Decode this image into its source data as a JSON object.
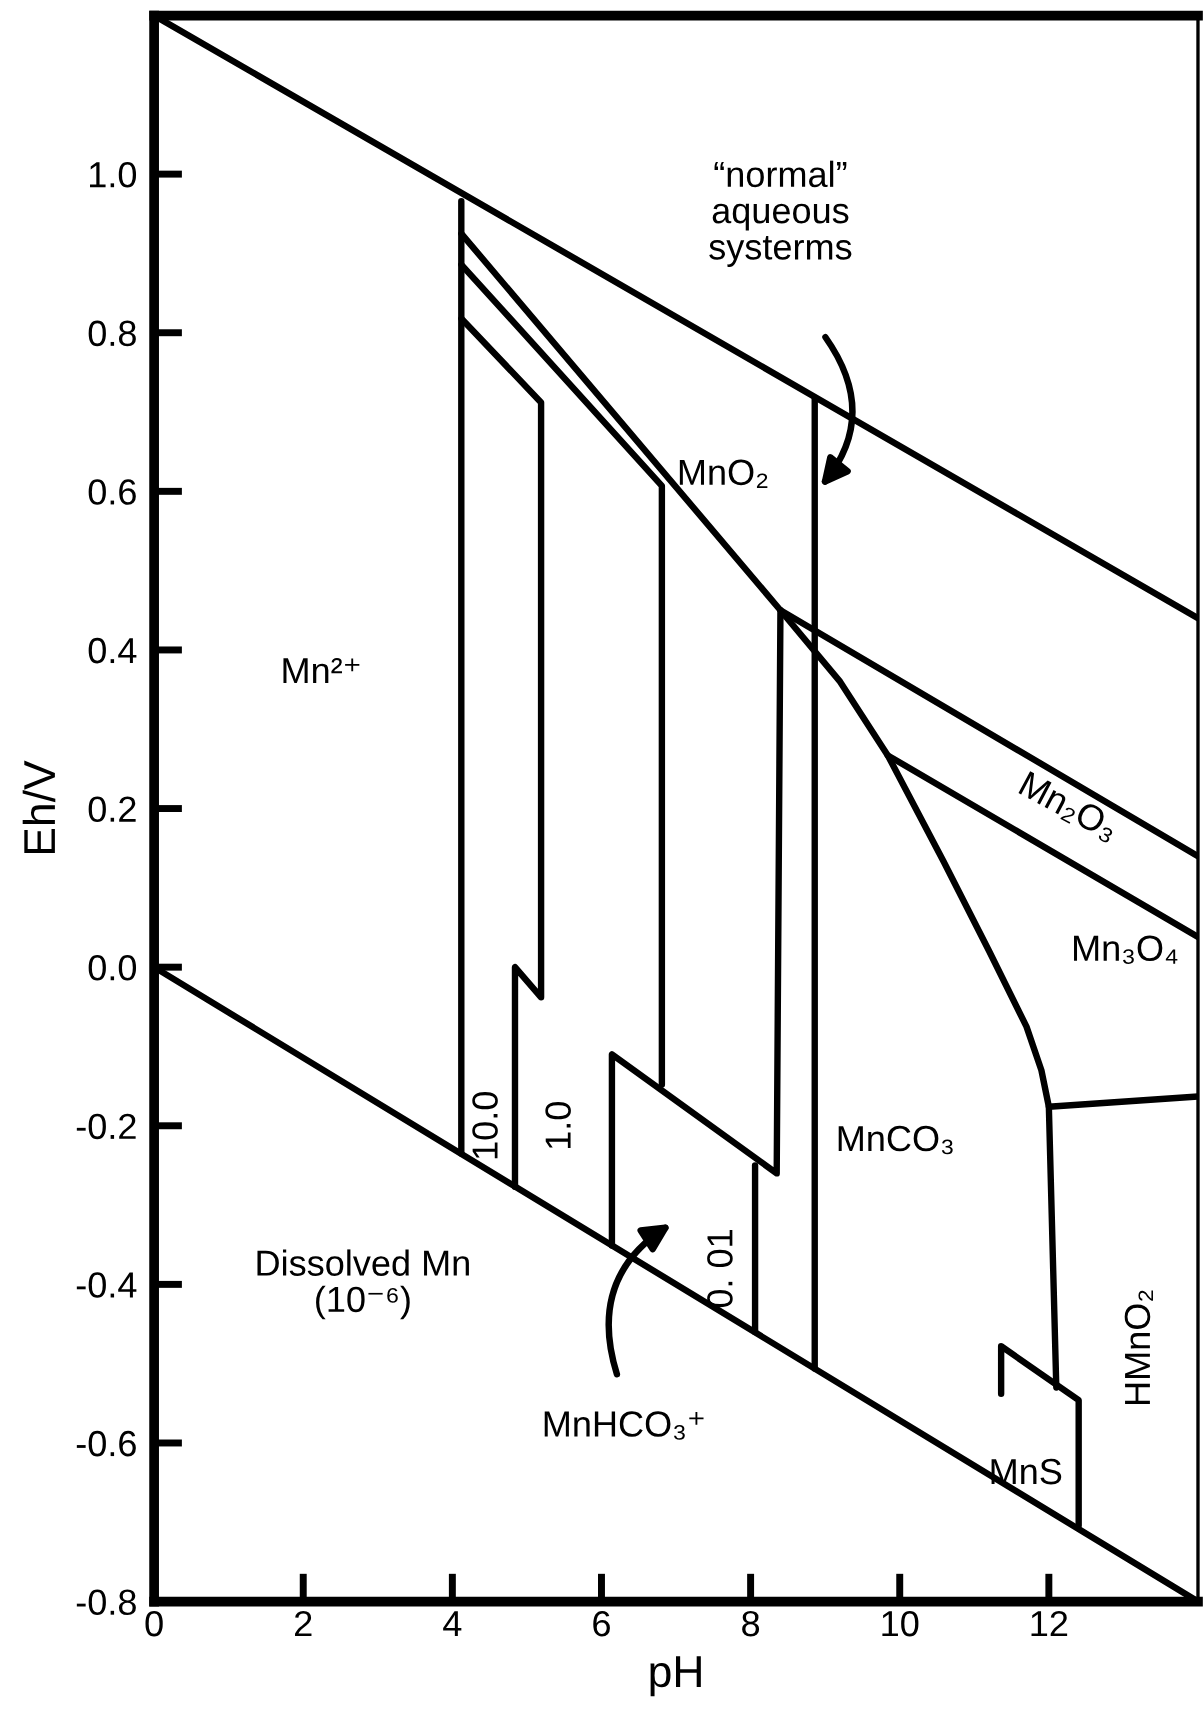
{
  "chart_data": {
    "type": "line",
    "xlabel": "pH",
    "ylabel": "Eh/V",
    "xlim": [
      0,
      14
    ],
    "ylim": [
      -0.8,
      1.2
    ],
    "xticks": [
      0,
      2,
      4,
      6,
      8,
      10,
      12
    ],
    "yticks": [
      -0.8,
      -0.6,
      -0.4,
      -0.2,
      {
        "value": 0,
        "label": "0.0"
      },
      0.2,
      0.4,
      0.6,
      0.8,
      {
        "value": 1,
        "label": "1.0"
      }
    ],
    "grid": false,
    "marker": "none",
    "line_style": "solid",
    "series": [
      {
        "color": "#000000",
        "x": [
          0,
          14
        ],
        "values": [
          1.2,
          0.44
        ]
      },
      {
        "color": "#000000",
        "x": [
          0,
          14
        ],
        "values": [
          0.0,
          -0.8
        ]
      },
      {
        "color": "#000000",
        "x": [
          4.12,
          4.12
        ],
        "values": [
          0.966,
          -0.235
        ]
      },
      {
        "color": "#000000",
        "x": [
          4.12,
          5.19,
          5.19,
          4.84,
          4.84
        ],
        "values": [
          0.818,
          0.712,
          -0.038,
          0.0,
          -0.277
        ]
      },
      {
        "color": "#000000",
        "x": [
          4.12,
          6.81,
          6.81
        ],
        "values": [
          0.886,
          0.607,
          -0.148
        ]
      },
      {
        "color": "#000000",
        "x": [
          4.12,
          8.4,
          14
        ],
        "values": [
          0.925,
          0.45,
          0.14
        ]
      },
      {
        "color": "#000000",
        "x": [
          8.4,
          8.35,
          6.14,
          6.14
        ],
        "values": [
          0.45,
          -0.26,
          -0.11,
          -0.351
        ]
      },
      {
        "color": "#000000",
        "x": [
          8.06,
          8.06
        ],
        "values": [
          -0.25,
          -0.46
        ]
      },
      {
        "color": "#000000",
        "x": [
          8.86,
          8.86
        ],
        "values": [
          0.716,
          -0.506
        ]
      },
      {
        "color": "#000000",
        "x": [
          8.4,
          9.2,
          9.84,
          10.59,
          11.2,
          11.7,
          11.9,
          12.0,
          12.1
        ],
        "values": [
          0.45,
          0.36,
          0.267,
          0.133,
          0.02,
          -0.075,
          -0.13,
          -0.176,
          -0.53
        ]
      },
      {
        "color": "#000000",
        "x": [
          9.84,
          14
        ],
        "values": [
          0.267,
          0.038
        ]
      },
      {
        "color": "#000000",
        "x": [
          12.0,
          14
        ],
        "values": [
          -0.176,
          -0.163
        ]
      },
      {
        "color": "#000000",
        "x": [
          11.36,
          11.36,
          12.4,
          12.4
        ],
        "values": [
          -0.538,
          -0.478,
          -0.546,
          -0.704
        ]
      }
    ],
    "annotations": [
      "Mn²⁺",
      "MnO₂",
      "“normal”\naqueous\nsysterms",
      "Mn₂O₃",
      "Mn₃O₄",
      "MnCO₃",
      "HMnO₂",
      "MnS",
      "10.0",
      "1.0",
      "0. 01",
      "Dissolved Mn\n(10⁻⁶)",
      "MnHCO₃⁺"
    ]
  }
}
